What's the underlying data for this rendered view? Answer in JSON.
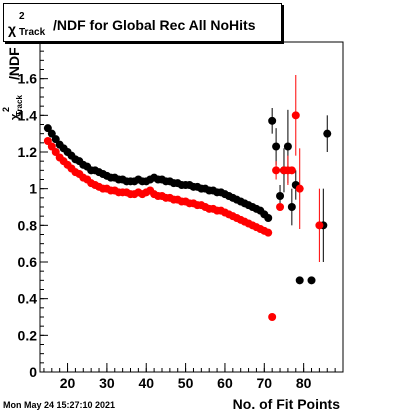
{
  "title": {
    "chi": "χ",
    "sup": "2",
    "sub": "Track",
    "rest": "/NDF for Global Rec All NoHits"
  },
  "ylabel": {
    "ndf": "/NDF",
    "chi": "χ",
    "sup": "2",
    "sub": "Track"
  },
  "xlabel": "No. of Fit Points",
  "timestamp": "Mon May 24 15:27:10 2021",
  "colors": {
    "series_black": "#000000",
    "series_red": "#ff0000"
  },
  "chart_data": {
    "type": "scatter",
    "title": "χ2 Track/NDF for Global Rec All NoHits",
    "xlabel": "No. of Fit Points",
    "ylabel": "χ2 Track /NDF",
    "xlim": [
      13,
      90
    ],
    "ylim": [
      0,
      1.8
    ],
    "x_ticks": [
      20,
      30,
      40,
      50,
      60,
      70,
      80
    ],
    "y_ticks": [
      0,
      0.2,
      0.4,
      0.6,
      0.8,
      1,
      1.2,
      1.4,
      1.6
    ],
    "y_tick_labels": [
      "0",
      "0.2",
      "0.4",
      "0.6",
      "0.8",
      "1",
      "1.2",
      "1.4",
      "1.6"
    ],
    "series": [
      {
        "color": "#000000",
        "points": [
          {
            "x": 15,
            "y": 1.33
          },
          {
            "x": 16,
            "y": 1.3
          },
          {
            "x": 17,
            "y": 1.27
          },
          {
            "x": 18,
            "y": 1.24
          },
          {
            "x": 19,
            "y": 1.22
          },
          {
            "x": 20,
            "y": 1.2
          },
          {
            "x": 21,
            "y": 1.18
          },
          {
            "x": 22,
            "y": 1.16
          },
          {
            "x": 23,
            "y": 1.15
          },
          {
            "x": 24,
            "y": 1.13
          },
          {
            "x": 25,
            "y": 1.12
          },
          {
            "x": 26,
            "y": 1.1
          },
          {
            "x": 27,
            "y": 1.1
          },
          {
            "x": 28,
            "y": 1.09
          },
          {
            "x": 29,
            "y": 1.08
          },
          {
            "x": 30,
            "y": 1.07
          },
          {
            "x": 31,
            "y": 1.06
          },
          {
            "x": 32,
            "y": 1.06
          },
          {
            "x": 33,
            "y": 1.05
          },
          {
            "x": 34,
            "y": 1.05
          },
          {
            "x": 35,
            "y": 1.04
          },
          {
            "x": 36,
            "y": 1.04
          },
          {
            "x": 37,
            "y": 1.04
          },
          {
            "x": 38,
            "y": 1.05
          },
          {
            "x": 39,
            "y": 1.04
          },
          {
            "x": 40,
            "y": 1.04
          },
          {
            "x": 41,
            "y": 1.05
          },
          {
            "x": 42,
            "y": 1.06
          },
          {
            "x": 43,
            "y": 1.05
          },
          {
            "x": 44,
            "y": 1.05
          },
          {
            "x": 45,
            "y": 1.04
          },
          {
            "x": 46,
            "y": 1.04
          },
          {
            "x": 47,
            "y": 1.03
          },
          {
            "x": 48,
            "y": 1.03
          },
          {
            "x": 49,
            "y": 1.02
          },
          {
            "x": 50,
            "y": 1.02
          },
          {
            "x": 51,
            "y": 1.02
          },
          {
            "x": 52,
            "y": 1.01
          },
          {
            "x": 53,
            "y": 1.01
          },
          {
            "x": 54,
            "y": 1.0
          },
          {
            "x": 55,
            "y": 1.0
          },
          {
            "x": 56,
            "y": 0.99
          },
          {
            "x": 57,
            "y": 0.99
          },
          {
            "x": 58,
            "y": 0.98
          },
          {
            "x": 59,
            "y": 0.98
          },
          {
            "x": 60,
            "y": 0.97
          },
          {
            "x": 61,
            "y": 0.96
          },
          {
            "x": 62,
            "y": 0.95
          },
          {
            "x": 63,
            "y": 0.94
          },
          {
            "x": 64,
            "y": 0.93
          },
          {
            "x": 65,
            "y": 0.92
          },
          {
            "x": 66,
            "y": 0.91
          },
          {
            "x": 67,
            "y": 0.9
          },
          {
            "x": 68,
            "y": 0.89
          },
          {
            "x": 69,
            "y": 0.88
          },
          {
            "x": 70,
            "y": 0.86
          },
          {
            "x": 71,
            "y": 0.84
          },
          {
            "x": 72,
            "y": 1.37,
            "err": 0.07
          },
          {
            "x": 73,
            "y": 1.23,
            "err": 0.1
          },
          {
            "x": 74,
            "y": 0.96,
            "err": 0.06
          },
          {
            "x": 75,
            "y": 1.1,
            "err": 0.12
          },
          {
            "x": 76,
            "y": 1.23,
            "err": 0.2
          },
          {
            "x": 77,
            "y": 0.9,
            "err": 0.1
          },
          {
            "x": 78,
            "y": 1.02,
            "err": 0.08
          },
          {
            "x": 79,
            "y": 0.5
          },
          {
            "x": 82,
            "y": 0.5
          },
          {
            "x": 85,
            "y": 0.8,
            "err": 0.2
          },
          {
            "x": 86,
            "y": 1.3,
            "err": 0.1
          }
        ]
      },
      {
        "color": "#ff0000",
        "points": [
          {
            "x": 15,
            "y": 1.26
          },
          {
            "x": 16,
            "y": 1.23
          },
          {
            "x": 17,
            "y": 1.2
          },
          {
            "x": 18,
            "y": 1.17
          },
          {
            "x": 19,
            "y": 1.15
          },
          {
            "x": 20,
            "y": 1.13
          },
          {
            "x": 21,
            "y": 1.11
          },
          {
            "x": 22,
            "y": 1.09
          },
          {
            "x": 23,
            "y": 1.08
          },
          {
            "x": 24,
            "y": 1.06
          },
          {
            "x": 25,
            "y": 1.05
          },
          {
            "x": 26,
            "y": 1.03
          },
          {
            "x": 27,
            "y": 1.02
          },
          {
            "x": 28,
            "y": 1.01
          },
          {
            "x": 29,
            "y": 1.0
          },
          {
            "x": 30,
            "y": 1.0
          },
          {
            "x": 31,
            "y": 0.99
          },
          {
            "x": 32,
            "y": 0.99
          },
          {
            "x": 33,
            "y": 0.98
          },
          {
            "x": 34,
            "y": 0.98
          },
          {
            "x": 35,
            "y": 0.98
          },
          {
            "x": 36,
            "y": 0.97
          },
          {
            "x": 37,
            "y": 0.97
          },
          {
            "x": 38,
            "y": 0.98
          },
          {
            "x": 39,
            "y": 0.97
          },
          {
            "x": 40,
            "y": 0.98
          },
          {
            "x": 41,
            "y": 0.99
          },
          {
            "x": 42,
            "y": 0.97
          },
          {
            "x": 43,
            "y": 0.96
          },
          {
            "x": 44,
            "y": 0.96
          },
          {
            "x": 45,
            "y": 0.95
          },
          {
            "x": 46,
            "y": 0.95
          },
          {
            "x": 47,
            "y": 0.94
          },
          {
            "x": 48,
            "y": 0.94
          },
          {
            "x": 49,
            "y": 0.93
          },
          {
            "x": 50,
            "y": 0.93
          },
          {
            "x": 51,
            "y": 0.92
          },
          {
            "x": 52,
            "y": 0.92
          },
          {
            "x": 53,
            "y": 0.91
          },
          {
            "x": 54,
            "y": 0.91
          },
          {
            "x": 55,
            "y": 0.9
          },
          {
            "x": 56,
            "y": 0.89
          },
          {
            "x": 57,
            "y": 0.89
          },
          {
            "x": 58,
            "y": 0.88
          },
          {
            "x": 59,
            "y": 0.88
          },
          {
            "x": 60,
            "y": 0.87
          },
          {
            "x": 61,
            "y": 0.86
          },
          {
            "x": 62,
            "y": 0.85
          },
          {
            "x": 63,
            "y": 0.84
          },
          {
            "x": 64,
            "y": 0.83
          },
          {
            "x": 65,
            "y": 0.82
          },
          {
            "x": 66,
            "y": 0.81
          },
          {
            "x": 67,
            "y": 0.8
          },
          {
            "x": 68,
            "y": 0.79
          },
          {
            "x": 69,
            "y": 0.78
          },
          {
            "x": 70,
            "y": 0.77
          },
          {
            "x": 71,
            "y": 0.76
          },
          {
            "x": 72,
            "y": 0.3
          },
          {
            "x": 73,
            "y": 1.1,
            "err": 0.05
          },
          {
            "x": 74,
            "y": 0.9
          },
          {
            "x": 75,
            "y": 1.1
          },
          {
            "x": 76,
            "y": 1.1,
            "err": 0.08
          },
          {
            "x": 77,
            "y": 1.1
          },
          {
            "x": 78,
            "y": 1.4,
            "err": 0.22
          },
          {
            "x": 79,
            "y": 1.0,
            "err": 0.22
          },
          {
            "x": 84,
            "y": 0.8,
            "err": 0.2
          }
        ]
      }
    ]
  }
}
